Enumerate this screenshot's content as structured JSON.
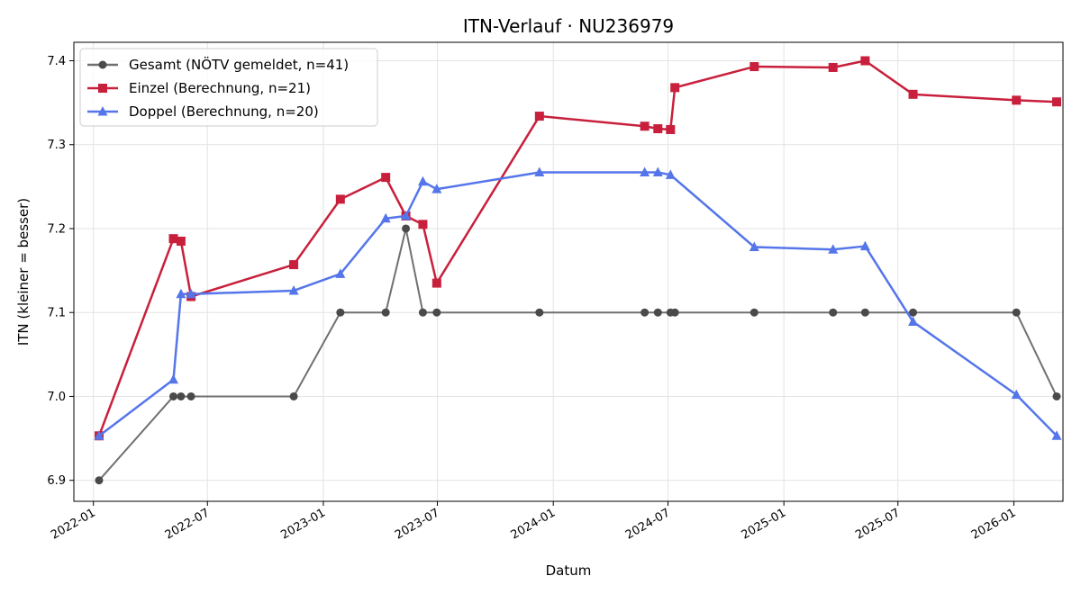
{
  "chart_data": {
    "type": "line",
    "title": "ITN-Verlauf · NU236979",
    "xlabel": "Datum",
    "ylabel": "ITN  (kleiner = besser)",
    "xlim": [
      "2021-12-01",
      "2026-03-20"
    ],
    "ylim": [
      6.875,
      7.422
    ],
    "x_ticks": [
      "2022-01",
      "2022-07",
      "2023-01",
      "2023-07",
      "2024-01",
      "2024-07",
      "2025-01",
      "2025-07",
      "2026-01"
    ],
    "y_ticks": [
      6.9,
      7.0,
      7.1,
      7.2,
      7.3,
      7.4
    ],
    "y_tick_labels": [
      "6.9",
      "7.0",
      "7.1",
      "7.2",
      "7.3",
      "7.4"
    ],
    "grid": true,
    "legend_position": "top-left",
    "series": [
      {
        "name": "Gesamt (NÖTV gemeldet, n=41)",
        "color": "#707070",
        "marker": "circle",
        "points": [
          [
            "2022-01-10",
            6.9
          ],
          [
            "2022-05-08",
            7.0
          ],
          [
            "2022-05-20",
            7.0
          ],
          [
            "2022-06-05",
            7.0
          ],
          [
            "2022-11-15",
            7.0
          ],
          [
            "2023-01-28",
            7.1
          ],
          [
            "2023-04-10",
            7.1
          ],
          [
            "2023-05-12",
            7.2
          ],
          [
            "2023-06-08",
            7.1
          ],
          [
            "2023-06-30",
            7.1
          ],
          [
            "2023-12-10",
            7.1
          ],
          [
            "2024-05-25",
            7.1
          ],
          [
            "2024-06-15",
            7.1
          ],
          [
            "2024-07-05",
            7.1
          ],
          [
            "2024-07-12",
            7.1
          ],
          [
            "2024-11-15",
            7.1
          ],
          [
            "2025-03-20",
            7.1
          ],
          [
            "2025-05-10",
            7.1
          ],
          [
            "2025-07-25",
            7.1
          ],
          [
            "2026-01-05",
            7.1
          ],
          [
            "2026-03-10",
            7.0
          ]
        ]
      },
      {
        "name": "Einzel (Berechnung, n=21)",
        "color": "#c8203c",
        "marker": "square",
        "points": [
          [
            "2022-01-10",
            6.953
          ],
          [
            "2022-05-08",
            7.188
          ],
          [
            "2022-05-20",
            7.185
          ],
          [
            "2022-06-05",
            7.119
          ],
          [
            "2022-11-15",
            7.157
          ],
          [
            "2023-01-28",
            7.235
          ],
          [
            "2023-04-10",
            7.261
          ],
          [
            "2023-05-12",
            7.215
          ],
          [
            "2023-06-08",
            7.205
          ],
          [
            "2023-06-30",
            7.135
          ],
          [
            "2023-12-10",
            7.334
          ],
          [
            "2024-05-25",
            7.322
          ],
          [
            "2024-06-15",
            7.319
          ],
          [
            "2024-07-05",
            7.318
          ],
          [
            "2024-07-12",
            7.368
          ],
          [
            "2024-11-15",
            7.393
          ],
          [
            "2025-03-20",
            7.392
          ],
          [
            "2025-05-10",
            7.4
          ],
          [
            "2025-07-25",
            7.36
          ],
          [
            "2026-01-05",
            7.353
          ],
          [
            "2026-03-10",
            7.351
          ]
        ]
      },
      {
        "name": "Doppel (Berechnung, n=20)",
        "color": "#5575ea",
        "marker": "triangle",
        "points": [
          [
            "2022-01-10",
            6.953
          ],
          [
            "2022-05-08",
            7.02
          ],
          [
            "2022-05-20",
            7.122
          ],
          [
            "2022-06-05",
            7.122
          ],
          [
            "2022-11-15",
            7.126
          ],
          [
            "2023-01-28",
            7.146
          ],
          [
            "2023-04-10",
            7.212
          ],
          [
            "2023-05-12",
            7.215
          ],
          [
            "2023-06-08",
            7.256
          ],
          [
            "2023-06-30",
            7.247
          ],
          [
            "2023-12-10",
            7.267
          ],
          [
            "2024-05-25",
            7.267
          ],
          [
            "2024-06-15",
            7.267
          ],
          [
            "2024-07-05",
            7.264
          ],
          [
            "2024-11-15",
            7.178
          ],
          [
            "2025-03-20",
            7.175
          ],
          [
            "2025-05-10",
            7.179
          ],
          [
            "2025-07-25",
            7.089
          ],
          [
            "2026-01-05",
            7.002
          ],
          [
            "2026-03-10",
            6.953
          ]
        ]
      }
    ]
  }
}
